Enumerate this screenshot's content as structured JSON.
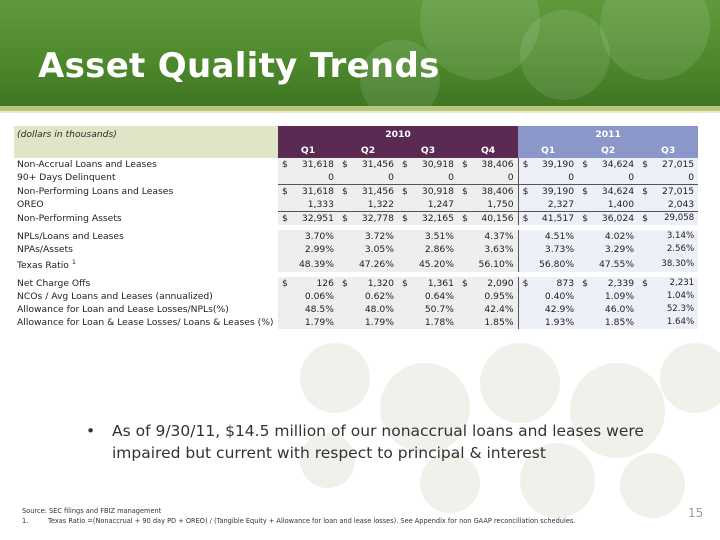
{
  "title": "Asset Quality Trends",
  "colors": {
    "header_green": "#4e8a2d",
    "year_2010": "#5a2a52",
    "year_2011": "#8a97c8"
  },
  "table": {
    "units_label": "(dollars in thousands)",
    "year_2010": "2010",
    "year_2011": "2011",
    "quarters": [
      "Q1",
      "Q2",
      "Q3",
      "Q4",
      "Q1",
      "Q2",
      "Q3"
    ],
    "rows": [
      {
        "label": "Non-Accrual Loans and Leases",
        "dollar": true,
        "values": [
          "31,618",
          "31,456",
          "30,918",
          "38,406",
          "39,190",
          "34,624",
          "27,015"
        ]
      },
      {
        "label": "90+ Days Delinquent",
        "dollar": false,
        "values": [
          "0",
          "0",
          "0",
          "0",
          "0",
          "0",
          "0"
        ]
      },
      {
        "label": "Non-Performing Loans and Leases",
        "dollar": true,
        "values": [
          "31,618",
          "31,456",
          "30,918",
          "38,406",
          "39,190",
          "34,624",
          "27,015"
        ]
      },
      {
        "label": "OREO",
        "dollar": false,
        "values": [
          "1,333",
          "1,322",
          "1,247",
          "1,750",
          "2,327",
          "1,400",
          "2,043"
        ]
      },
      {
        "label": "Non-Performing Assets",
        "dollar": true,
        "values": [
          "32,951",
          "32,778",
          "32,165",
          "40,156",
          "41,517",
          "36,024",
          "29,058"
        ]
      },
      {
        "label": "NPLs/Loans and Leases",
        "dollar": false,
        "values": [
          "3.70%",
          "3.72%",
          "3.51%",
          "4.37%",
          "4.51%",
          "4.02%",
          "3.14%"
        ]
      },
      {
        "label": "NPAs/Assets",
        "dollar": false,
        "values": [
          "2.99%",
          "3.05%",
          "2.86%",
          "3.63%",
          "3.73%",
          "3.29%",
          "2.56%"
        ]
      },
      {
        "label": "Texas Ratio",
        "footnote": "1",
        "dollar": false,
        "values": [
          "48.39%",
          "47.26%",
          "45.20%",
          "56.10%",
          "56.80%",
          "47.55%",
          "38.30%"
        ]
      },
      {
        "label": "Net Charge Offs",
        "dollar": true,
        "values": [
          "126",
          "1,320",
          "1,361",
          "2,090",
          "873",
          "2,339",
          "2,231"
        ]
      },
      {
        "label": "NCOs / Avg Loans and Leases (annualized)",
        "dollar": false,
        "values": [
          "0.06%",
          "0.62%",
          "0.64%",
          "0.95%",
          "0.40%",
          "1.09%",
          "1.04%"
        ]
      },
      {
        "label": "Allowance for Loan and Lease Losses/NPLs(%)",
        "dollar": false,
        "values": [
          "48.5%",
          "48.0%",
          "50.7%",
          "42.4%",
          "42.9%",
          "46.0%",
          "52.3%"
        ]
      },
      {
        "label": "Allowance for Loan & Lease Losses/ Loans & Leases (%)",
        "dollar": false,
        "values": [
          "1.79%",
          "1.79%",
          "1.78%",
          "1.85%",
          "1.93%",
          "1.85%",
          "1.64%"
        ]
      }
    ]
  },
  "bullet": {
    "mark": "•",
    "text": "As of 9/30/11,  $14.5 million of our nonaccrual loans and leases were impaired but current with respect to principal & interest"
  },
  "footnotes": {
    "source": "Source: SEC filings and FBIZ management",
    "note_number": "1.",
    "note_text": "Texas Ratio =(Nonaccrual + 90 day PD + OREO) / (Tangible Equity + Allowance for loan and lease losses). See Appendix for non GAAP reconciliation schedules."
  },
  "page_number": "15"
}
